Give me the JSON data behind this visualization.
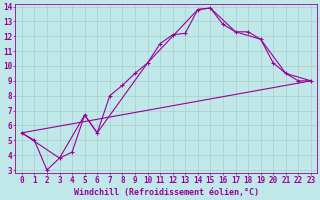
{
  "xlabel": "Windchill (Refroidissement éolien,°C)",
  "xlim": [
    -0.5,
    23.5
  ],
  "ylim": [
    2.8,
    14.2
  ],
  "xticks": [
    0,
    1,
    2,
    3,
    4,
    5,
    6,
    7,
    8,
    9,
    10,
    11,
    12,
    13,
    14,
    15,
    16,
    17,
    18,
    19,
    20,
    21,
    22,
    23
  ],
  "yticks": [
    3,
    4,
    5,
    6,
    7,
    8,
    9,
    10,
    11,
    12,
    13,
    14
  ],
  "background_color": "#c0e8e8",
  "line_color": "#990099",
  "grid_color": "#a0c8c8",
  "line1_x": [
    0,
    1,
    2,
    3,
    4,
    5,
    6,
    7,
    8,
    9,
    10,
    11,
    12,
    13,
    14,
    15,
    16,
    17,
    18,
    19,
    20,
    21,
    22,
    23
  ],
  "line1_y": [
    5.5,
    5.0,
    3.0,
    3.8,
    4.2,
    6.7,
    5.5,
    8.0,
    8.7,
    9.5,
    10.2,
    11.5,
    12.1,
    12.2,
    13.8,
    13.9,
    12.8,
    12.3,
    12.3,
    11.8,
    10.2,
    9.5,
    9.0,
    9.0
  ],
  "line2_x": [
    0,
    3,
    5,
    6,
    10,
    14,
    15,
    17,
    19,
    21,
    23
  ],
  "line2_y": [
    5.5,
    3.8,
    6.7,
    5.5,
    10.2,
    13.8,
    13.9,
    12.3,
    11.8,
    9.5,
    9.0
  ],
  "line3_x": [
    0,
    23
  ],
  "line3_y": [
    5.5,
    9.0
  ],
  "marker": "+",
  "markersize": 3,
  "linewidth": 0.8,
  "xlabel_fontsize": 6,
  "tick_fontsize": 5.5
}
